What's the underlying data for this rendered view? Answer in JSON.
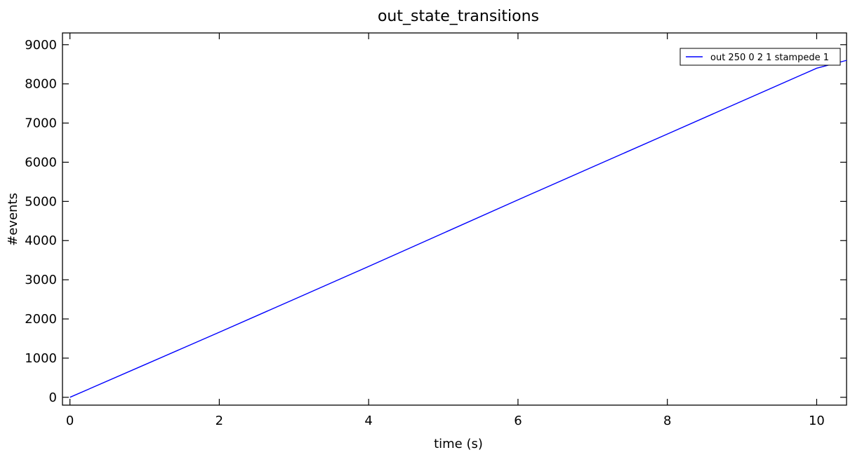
{
  "chart_data": {
    "type": "line",
    "title": "out_state_transitions",
    "xlabel": "time (s)",
    "ylabel": "#events",
    "xlim": [
      -0.1,
      10.4
    ],
    "ylim": [
      -200,
      9300
    ],
    "xticks": [
      0,
      2,
      4,
      6,
      8,
      10
    ],
    "xtick_labels": [
      "0",
      "2",
      "4",
      "6",
      "8",
      "10"
    ],
    "yticks": [
      0,
      1000,
      2000,
      3000,
      4000,
      5000,
      6000,
      7000,
      8000,
      9000
    ],
    "ytick_labels": [
      "0",
      "1000",
      "2000",
      "3000",
      "4000",
      "5000",
      "6000",
      "7000",
      "8000",
      "9000"
    ],
    "grid": false,
    "legend_position": "top-right",
    "series": [
      {
        "name": "out 250 0 2 1 stampede 1",
        "color": "#0000ff",
        "x": [
          0,
          1,
          2,
          3,
          4,
          5,
          6,
          7,
          8,
          9,
          10,
          10.4
        ],
        "y": [
          0,
          830,
          1660,
          2500,
          3340,
          4190,
          5040,
          5880,
          6720,
          7560,
          8400,
          8600
        ]
      }
    ]
  }
}
